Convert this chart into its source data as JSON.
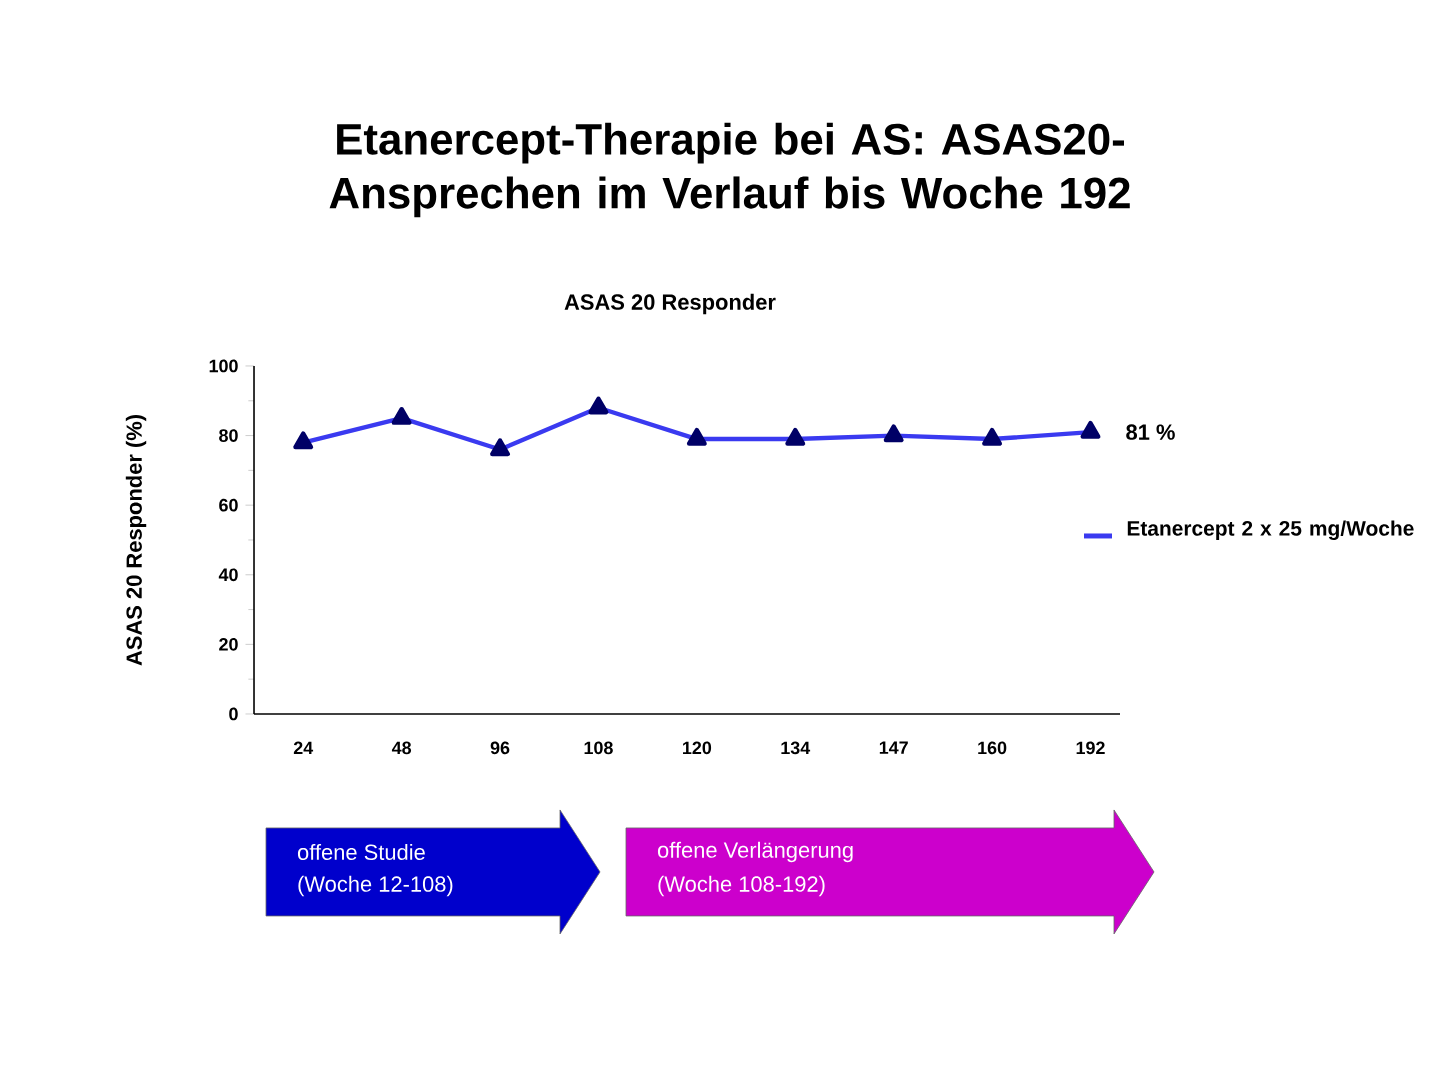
{
  "chart_data": {
    "type": "line",
    "title": "Etanercept-Therapie bei AS: ASAS20-Ansprechen im Verlauf bis Woche 192",
    "subtitle": "ASAS 20 Responder",
    "ylabel": "ASAS 20 Responder (%)",
    "categories": [
      "24",
      "48",
      "96",
      "108",
      "120",
      "134",
      "147",
      "160",
      "192"
    ],
    "series": [
      {
        "name": "Etanercept 2 x 25 mg/Woche",
        "color": "#3a3af0",
        "values": [
          78,
          85,
          76,
          88,
          79,
          79,
          80,
          79,
          81
        ],
        "value_labels": [
          null,
          null,
          null,
          null,
          null,
          null,
          null,
          null,
          "81 %"
        ]
      }
    ],
    "ylim": [
      0,
      100
    ],
    "yticks": [
      0,
      20,
      40,
      60,
      80,
      100
    ],
    "marker": "triangle",
    "legend": "right",
    "grid": false,
    "annotations": [
      "offene Studie",
      "(Woche 12-108)",
      "offene Verlängerung",
      "(Woche 108-192)"
    ]
  }
}
